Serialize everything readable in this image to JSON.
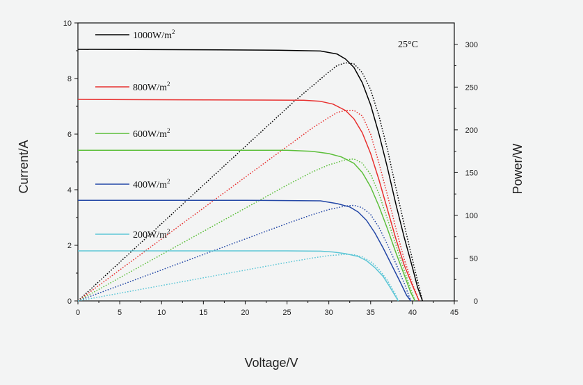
{
  "chart_data": {
    "type": "line",
    "title": "",
    "annotation": "25°C",
    "xlabel": "Voltage/V",
    "ylabel": "Current/A",
    "y2label": "Power/W",
    "xlim": [
      0,
      45
    ],
    "ylim": [
      0,
      10
    ],
    "y2lim": [
      0,
      325
    ],
    "xticks": [
      0,
      5,
      10,
      15,
      20,
      25,
      30,
      35,
      40,
      45
    ],
    "yticks": [
      0,
      2,
      4,
      6,
      8,
      10
    ],
    "y2ticks": [
      0,
      50,
      100,
      150,
      200,
      250,
      300
    ],
    "legend_position": "top-left",
    "series": [
      {
        "name": "1000W/m",
        "superscript": "2",
        "color": "#000000",
        "current": [
          [
            0,
            9.05
          ],
          [
            17,
            9.03
          ],
          [
            24,
            9.02
          ],
          [
            29,
            8.99
          ],
          [
            31,
            8.88
          ],
          [
            32,
            8.7
          ],
          [
            33,
            8.4
          ],
          [
            34,
            7.85
          ],
          [
            35,
            7.05
          ],
          [
            36,
            6.0
          ],
          [
            37,
            4.8
          ],
          [
            38,
            3.5
          ],
          [
            39,
            2.3
          ],
          [
            40,
            1.2
          ],
          [
            40.6,
            0.5
          ],
          [
            41.2,
            0
          ]
        ],
        "power": [
          [
            0,
            0
          ],
          [
            10,
            90.3
          ],
          [
            20,
            180.5
          ],
          [
            26,
            234.5
          ],
          [
            30,
            267.6
          ],
          [
            31,
            275.3
          ],
          [
            32,
            278.4
          ],
          [
            33,
            277.2
          ],
          [
            34,
            266.9
          ],
          [
            35,
            246.8
          ],
          [
            36,
            216
          ],
          [
            37,
            177.6
          ],
          [
            38,
            133
          ],
          [
            39,
            89.7
          ],
          [
            40,
            48
          ],
          [
            41.2,
            0
          ]
        ]
      },
      {
        "name": "800W/m",
        "superscript": "2",
        "color": "#e8302f",
        "current": [
          [
            0,
            7.25
          ],
          [
            6,
            7.24
          ],
          [
            27,
            7.22
          ],
          [
            29,
            7.18
          ],
          [
            30.5,
            7.08
          ],
          [
            32,
            6.85
          ],
          [
            33,
            6.55
          ],
          [
            34,
            6.05
          ],
          [
            35,
            5.3
          ],
          [
            36,
            4.35
          ],
          [
            37,
            3.3
          ],
          [
            38,
            2.25
          ],
          [
            39,
            1.3
          ],
          [
            40,
            0.55
          ],
          [
            40.8,
            0
          ]
        ],
        "power": [
          [
            0,
            0
          ],
          [
            10,
            72.4
          ],
          [
            20,
            144.6
          ],
          [
            25,
            180.5
          ],
          [
            28,
            201.9
          ],
          [
            30,
            214.5
          ],
          [
            31,
            220.3
          ],
          [
            32,
            222.6
          ],
          [
            33,
            222.8
          ],
          [
            34,
            216.2
          ],
          [
            35,
            195
          ],
          [
            36,
            161
          ],
          [
            37,
            124
          ],
          [
            38,
            85.5
          ],
          [
            39,
            49
          ],
          [
            40,
            20
          ],
          [
            40.8,
            0
          ]
        ]
      },
      {
        "name": "600W/m",
        "superscript": "2",
        "color": "#5cbf3a",
        "current": [
          [
            0,
            5.42
          ],
          [
            25,
            5.42
          ],
          [
            28,
            5.38
          ],
          [
            30,
            5.3
          ],
          [
            31.5,
            5.18
          ],
          [
            33,
            4.95
          ],
          [
            34,
            4.62
          ],
          [
            35,
            4.1
          ],
          [
            36,
            3.4
          ],
          [
            37,
            2.6
          ],
          [
            38,
            1.75
          ],
          [
            39,
            0.95
          ],
          [
            39.8,
            0.3
          ],
          [
            40.3,
            0
          ]
        ],
        "power": [
          [
            0,
            0
          ],
          [
            10,
            54.2
          ],
          [
            20,
            108.4
          ],
          [
            25,
            135.5
          ],
          [
            28,
            150.7
          ],
          [
            30,
            159
          ],
          [
            32,
            165
          ],
          [
            33,
            166
          ],
          [
            34,
            161
          ],
          [
            35,
            148
          ],
          [
            36,
            125
          ],
          [
            37,
            96
          ],
          [
            38,
            66
          ],
          [
            39,
            36
          ],
          [
            40.3,
            0
          ]
        ]
      },
      {
        "name": "400W/m",
        "superscript": "2",
        "color": "#2347a6",
        "current": [
          [
            0,
            3.62
          ],
          [
            20,
            3.62
          ],
          [
            29,
            3.6
          ],
          [
            31,
            3.5
          ],
          [
            32.5,
            3.38
          ],
          [
            33.5,
            3.2
          ],
          [
            34.5,
            2.9
          ],
          [
            35.5,
            2.45
          ],
          [
            36.5,
            1.9
          ],
          [
            37.5,
            1.3
          ],
          [
            38.5,
            0.7
          ],
          [
            39.3,
            0.2
          ],
          [
            39.8,
            0
          ]
        ],
        "power": [
          [
            0,
            0
          ],
          [
            10,
            36.2
          ],
          [
            20,
            72.4
          ],
          [
            25,
            90.5
          ],
          [
            28,
            100.8
          ],
          [
            30,
            106.8
          ],
          [
            32,
            111
          ],
          [
            33,
            111.8
          ],
          [
            34,
            109
          ],
          [
            35,
            101
          ],
          [
            36,
            86
          ],
          [
            37,
            66
          ],
          [
            38,
            44
          ],
          [
            39,
            21
          ],
          [
            39.8,
            0
          ]
        ]
      },
      {
        "name": "200W/m",
        "superscript": "2",
        "color": "#5cc6d6",
        "current": [
          [
            0,
            1.8
          ],
          [
            25,
            1.8
          ],
          [
            29,
            1.79
          ],
          [
            30.5,
            1.76
          ],
          [
            32,
            1.7
          ],
          [
            33.5,
            1.6
          ],
          [
            34.5,
            1.45
          ],
          [
            35.5,
            1.2
          ],
          [
            36.5,
            0.88
          ],
          [
            37.3,
            0.5
          ],
          [
            38,
            0.15
          ],
          [
            38.3,
            0
          ]
        ],
        "power": [
          [
            0,
            0
          ],
          [
            10,
            18
          ],
          [
            20,
            36
          ],
          [
            25,
            45
          ],
          [
            28,
            50.1
          ],
          [
            30,
            53
          ],
          [
            32,
            54.4
          ],
          [
            33,
            54
          ],
          [
            34,
            51.5
          ],
          [
            35,
            46
          ],
          [
            36,
            37
          ],
          [
            37,
            24
          ],
          [
            38,
            7
          ],
          [
            38.3,
            0
          ]
        ]
      }
    ]
  }
}
